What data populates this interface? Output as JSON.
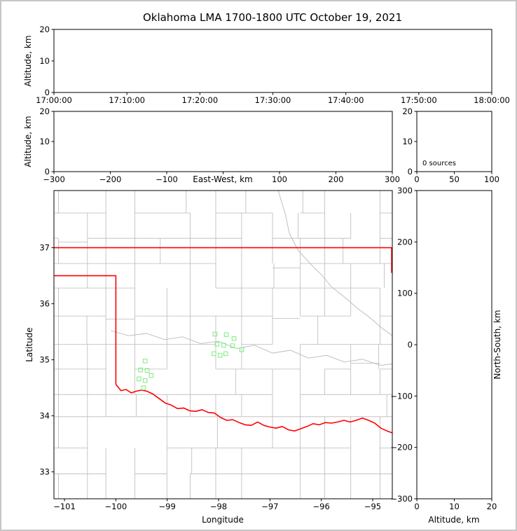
{
  "title": "Oklahoma LMA 1700-1800 UTC October 19, 2021",
  "labels": {
    "altitude_km": "Altitude, km",
    "east_west_km": "East-West, km",
    "latitude": "Latitude",
    "longitude": "Longitude",
    "north_south_km": "North-South, km"
  },
  "colors": {
    "axes": "#000000",
    "state_border": "#ff0000",
    "county_lines": "#b9b9b9",
    "source_marker": "#90ee90"
  },
  "chart_data": [
    {
      "id": "time_height",
      "type": "scatter",
      "title": "Oklahoma LMA 1700-1800 UTC October 19, 2021",
      "xlabel": "",
      "ylabel": "Altitude, km",
      "xticklabels": [
        "17:00:00",
        "17:10:00",
        "17:20:00",
        "17:30:00",
        "17:40:00",
        "17:50:00",
        "18:00:00"
      ],
      "ylim": [
        0,
        20
      ],
      "yticks": [
        0,
        10,
        20
      ],
      "points": []
    },
    {
      "id": "east_west_height",
      "type": "scatter",
      "xlabel": "East-West, km",
      "ylabel": "Altitude, km",
      "xlim": [
        -300,
        300
      ],
      "xticks": [
        -300,
        -200,
        -100,
        0,
        100,
        200,
        300
      ],
      "hide_zero_xtick_label": true,
      "ylim": [
        0,
        20
      ],
      "yticks": [
        0,
        10,
        20
      ],
      "points": []
    },
    {
      "id": "source_counts",
      "type": "scatter",
      "annotation": "0 sources",
      "xlim": [
        0,
        100
      ],
      "xticks": [
        0,
        50,
        100
      ],
      "ylim": [
        0,
        20
      ],
      "yticks": [
        0,
        10,
        20
      ],
      "points": []
    },
    {
      "id": "plan_view",
      "type": "scatter",
      "xlabel": "Longitude",
      "ylabel": "Latitude",
      "xlim": [
        -101.205,
        -94.618
      ],
      "xticks": [
        -101,
        -100,
        -99,
        -98,
        -97,
        -96,
        -95
      ],
      "ylim": [
        32.52,
        38.02
      ],
      "yticks": [
        33,
        34,
        35,
        36,
        37
      ],
      "marker": "open-square",
      "marker_color": "#90ee90",
      "marker_size_px": 5.5,
      "sources_lonlat": [
        [
          -98.07,
          35.46
        ],
        [
          -97.85,
          35.45
        ],
        [
          -98.03,
          35.28
        ],
        [
          -97.9,
          35.26
        ],
        [
          -97.73,
          35.25
        ],
        [
          -98.09,
          35.11
        ],
        [
          -97.97,
          35.08
        ],
        [
          -97.86,
          35.11
        ],
        [
          -97.55,
          35.18
        ],
        [
          -97.7,
          35.38
        ],
        [
          -99.43,
          34.98
        ],
        [
          -99.52,
          34.82
        ],
        [
          -99.39,
          34.81
        ],
        [
          -99.31,
          34.72
        ],
        [
          -99.55,
          34.66
        ],
        [
          -99.43,
          34.63
        ],
        [
          -99.46,
          34.5
        ]
      ]
    },
    {
      "id": "north_south_height",
      "type": "scatter",
      "xlabel": "Altitude, km",
      "ylabel": "North-South, km",
      "xlim": [
        0,
        20
      ],
      "xticks": [
        0,
        10,
        20
      ],
      "ylim": [
        -300,
        300
      ],
      "yticks": [
        -300,
        -200,
        -100,
        0,
        100,
        200,
        300
      ],
      "points": []
    }
  ],
  "map_overlay": {
    "state_border_color": "#ff0000",
    "county_line_color": "#b9b9b9",
    "state_boundary_polylines": [
      [
        [
          -101.3,
          37.0
        ],
        [
          -94.55,
          37.0
        ]
      ],
      [
        [
          -94.63,
          37.0
        ],
        [
          -94.63,
          36.55
        ]
      ],
      [
        [
          -101.3,
          36.5
        ],
        [
          -100.0,
          36.5
        ],
        [
          -100.0,
          34.56
        ]
      ],
      [
        [
          -100.0,
          34.56
        ],
        [
          -99.9,
          34.45
        ],
        [
          -99.8,
          34.47
        ],
        [
          -99.7,
          34.41
        ],
        [
          -99.6,
          34.44
        ],
        [
          -99.5,
          34.46
        ],
        [
          -99.4,
          34.44
        ],
        [
          -99.28,
          34.39
        ],
        [
          -99.16,
          34.31
        ],
        [
          -99.04,
          34.23
        ],
        [
          -98.92,
          34.19
        ],
        [
          -98.8,
          34.13
        ],
        [
          -98.68,
          34.14
        ],
        [
          -98.56,
          34.09
        ],
        [
          -98.44,
          34.08
        ],
        [
          -98.32,
          34.11
        ],
        [
          -98.2,
          34.06
        ],
        [
          -98.08,
          34.05
        ],
        [
          -97.96,
          33.97
        ],
        [
          -97.84,
          33.92
        ],
        [
          -97.72,
          33.93
        ],
        [
          -97.6,
          33.88
        ],
        [
          -97.48,
          33.84
        ],
        [
          -97.36,
          33.83
        ],
        [
          -97.24,
          33.89
        ],
        [
          -97.12,
          33.83
        ],
        [
          -97.0,
          33.8
        ],
        [
          -96.88,
          33.78
        ],
        [
          -96.76,
          33.81
        ],
        [
          -96.64,
          33.75
        ],
        [
          -96.52,
          33.73
        ],
        [
          -96.4,
          33.77
        ],
        [
          -96.28,
          33.81
        ],
        [
          -96.16,
          33.86
        ],
        [
          -96.04,
          33.84
        ],
        [
          -95.92,
          33.88
        ],
        [
          -95.8,
          33.87
        ],
        [
          -95.68,
          33.89
        ],
        [
          -95.56,
          33.92
        ],
        [
          -95.44,
          33.89
        ],
        [
          -95.32,
          33.92
        ],
        [
          -95.2,
          33.96
        ],
        [
          -95.08,
          33.92
        ],
        [
          -94.96,
          33.87
        ],
        [
          -94.84,
          33.78
        ],
        [
          -94.72,
          33.73
        ],
        [
          -94.6,
          33.69
        ]
      ]
    ],
    "rivers": [
      [
        [
          -100.1,
          35.52
        ],
        [
          -99.75,
          35.43
        ],
        [
          -99.4,
          35.47
        ],
        [
          -99.05,
          35.36
        ],
        [
          -98.7,
          35.41
        ],
        [
          -98.35,
          35.29
        ],
        [
          -98.0,
          35.33
        ],
        [
          -97.65,
          35.2
        ],
        [
          -97.3,
          35.26
        ],
        [
          -96.95,
          35.12
        ],
        [
          -96.6,
          35.17
        ],
        [
          -96.25,
          35.03
        ],
        [
          -95.9,
          35.08
        ],
        [
          -95.55,
          34.96
        ],
        [
          -95.2,
          35.01
        ],
        [
          -94.85,
          34.9
        ],
        [
          -94.6,
          34.93
        ]
      ],
      [
        [
          -96.85,
          38.05
        ],
        [
          -96.7,
          37.6
        ],
        [
          -96.62,
          37.25
        ],
        [
          -96.45,
          36.95
        ],
        [
          -96.2,
          36.7
        ],
        [
          -96.0,
          36.52
        ],
        [
          -95.8,
          36.3
        ],
        [
          -95.55,
          36.12
        ],
        [
          -95.3,
          35.92
        ],
        [
          -95.05,
          35.75
        ],
        [
          -94.8,
          35.55
        ],
        [
          -94.6,
          35.42
        ]
      ]
    ]
  }
}
